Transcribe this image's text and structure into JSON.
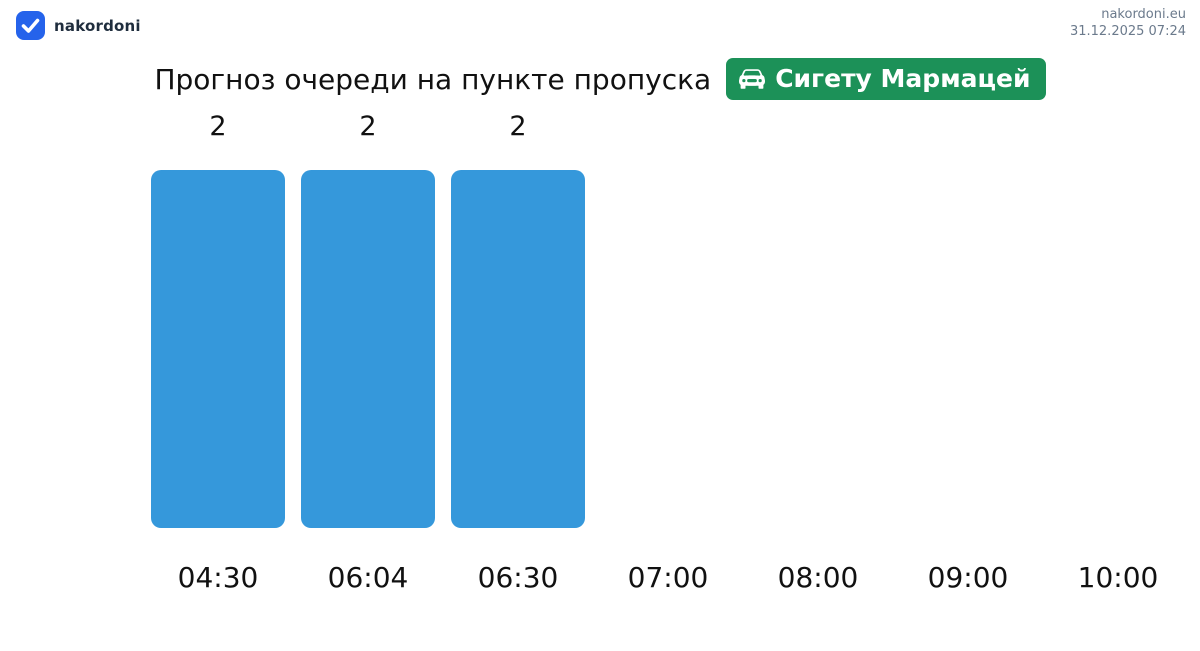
{
  "header": {
    "brand": "nakordoni",
    "logo_icon": "check-icon",
    "logo_color": "#2563eb",
    "site": "nakordoni.eu",
    "timestamp": "31.12.2025 07:24"
  },
  "title": "Прогноз очереди на пункте пропуска",
  "checkpoint_badge": {
    "icon": "car-front-icon",
    "label": "Сигету Мармацей",
    "color": "#1c9158"
  },
  "chart_data": {
    "type": "bar",
    "title": "Прогноз очереди на пункте пропуска",
    "categories": [
      "04:30",
      "06:04",
      "06:30",
      "07:00",
      "08:00",
      "09:00",
      "10:00"
    ],
    "values": [
      2,
      2,
      2,
      null,
      null,
      null,
      null
    ],
    "data_labels": [
      "2",
      "2",
      "2"
    ],
    "bar_color": "#3598db",
    "ylim": [
      0,
      2
    ],
    "xlabel": "",
    "ylabel": "",
    "grid": false,
    "legend": false
  }
}
